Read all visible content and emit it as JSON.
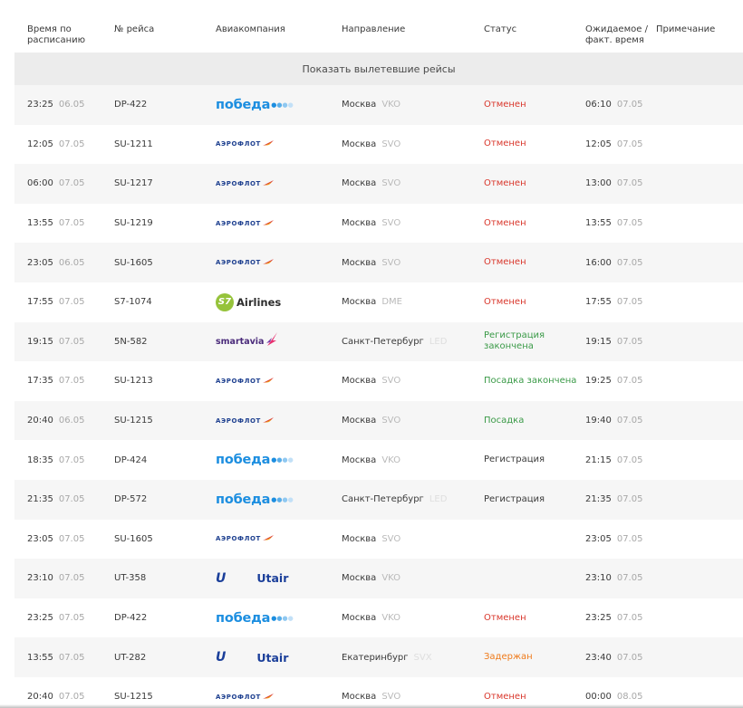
{
  "header": {
    "scheduled_time": "Время по расписанию",
    "flight_number": "№ рейса",
    "airline": "Авиакомпания",
    "destination": "Направление",
    "status": "Статус",
    "expected_time": "Ожидаемое / факт. время",
    "note": "Примечание"
  },
  "show_departed_label": "Показать вылетевшие рейсы",
  "colors": {
    "cancelled": "#d9372c",
    "boarding": "#3a9a47",
    "delayed": "#ef7a1a",
    "pobeda": "#1c8ee0",
    "aeroflot": "#1d3f8f",
    "s7": "#96c33b",
    "smartavia": "#4a2a7a",
    "utair": "#1b3f9a"
  },
  "flights": [
    {
      "scheduled_time": "23:25",
      "scheduled_date": "06.05",
      "flight": "DP-422",
      "airline": "pobeda",
      "city": "Москва",
      "airport": "VKO",
      "status": "Отменен",
      "status_type": "cancelled",
      "expected_time": "06:10",
      "expected_date": "07.05"
    },
    {
      "scheduled_time": "12:05",
      "scheduled_date": "07.05",
      "flight": "SU-1211",
      "airline": "aeroflot",
      "city": "Москва",
      "airport": "SVO",
      "status": "Отменен",
      "status_type": "cancelled",
      "expected_time": "12:05",
      "expected_date": "07.05"
    },
    {
      "scheduled_time": "06:00",
      "scheduled_date": "07.05",
      "flight": "SU-1217",
      "airline": "aeroflot",
      "city": "Москва",
      "airport": "SVO",
      "status": "Отменен",
      "status_type": "cancelled",
      "expected_time": "13:00",
      "expected_date": "07.05"
    },
    {
      "scheduled_time": "13:55",
      "scheduled_date": "07.05",
      "flight": "SU-1219",
      "airline": "aeroflot",
      "city": "Москва",
      "airport": "SVO",
      "status": "Отменен",
      "status_type": "cancelled",
      "expected_time": "13:55",
      "expected_date": "07.05"
    },
    {
      "scheduled_time": "23:05",
      "scheduled_date": "06.05",
      "flight": "SU-1605",
      "airline": "aeroflot",
      "city": "Москва",
      "airport": "SVO",
      "status": "Отменен",
      "status_type": "cancelled",
      "expected_time": "16:00",
      "expected_date": "07.05"
    },
    {
      "scheduled_time": "17:55",
      "scheduled_date": "07.05",
      "flight": "S7-1074",
      "airline": "s7",
      "city": "Москва",
      "airport": "DME",
      "status": "Отменен",
      "status_type": "cancelled",
      "expected_time": "17:55",
      "expected_date": "07.05"
    },
    {
      "scheduled_time": "19:15",
      "scheduled_date": "07.05",
      "flight": "5N-582",
      "airline": "smartavia",
      "city": "Санкт-Петербург",
      "airport": "LED",
      "status": "Регистрация закончена",
      "status_type": "green",
      "expected_time": "19:15",
      "expected_date": "07.05"
    },
    {
      "scheduled_time": "17:35",
      "scheduled_date": "07.05",
      "flight": "SU-1213",
      "airline": "aeroflot",
      "city": "Москва",
      "airport": "SVO",
      "status": "Посадка закончена",
      "status_type": "green",
      "expected_time": "19:25",
      "expected_date": "07.05"
    },
    {
      "scheduled_time": "20:40",
      "scheduled_date": "06.05",
      "flight": "SU-1215",
      "airline": "aeroflot",
      "city": "Москва",
      "airport": "SVO",
      "status": "Посадка",
      "status_type": "green",
      "expected_time": "19:40",
      "expected_date": "07.05"
    },
    {
      "scheduled_time": "18:35",
      "scheduled_date": "07.05",
      "flight": "DP-424",
      "airline": "pobeda",
      "city": "Москва",
      "airport": "VKO",
      "status": "Регистрация",
      "status_type": "neutral",
      "expected_time": "21:15",
      "expected_date": "07.05"
    },
    {
      "scheduled_time": "21:35",
      "scheduled_date": "07.05",
      "flight": "DP-572",
      "airline": "pobeda",
      "city": "Санкт-Петербург",
      "airport": "LED",
      "status": "Регистрация",
      "status_type": "neutral",
      "expected_time": "21:35",
      "expected_date": "07.05"
    },
    {
      "scheduled_time": "23:05",
      "scheduled_date": "07.05",
      "flight": "SU-1605",
      "airline": "aeroflot",
      "city": "Москва",
      "airport": "SVO",
      "status": "",
      "status_type": "neutral",
      "expected_time": "23:05",
      "expected_date": "07.05"
    },
    {
      "scheduled_time": "23:10",
      "scheduled_date": "07.05",
      "flight": "UT-358",
      "airline": "utair",
      "city": "Москва",
      "airport": "VKO",
      "status": "",
      "status_type": "neutral",
      "expected_time": "23:10",
      "expected_date": "07.05"
    },
    {
      "scheduled_time": "23:25",
      "scheduled_date": "07.05",
      "flight": "DP-422",
      "airline": "pobeda",
      "city": "Москва",
      "airport": "VKO",
      "status": "Отменен",
      "status_type": "cancelled",
      "expected_time": "23:25",
      "expected_date": "07.05"
    },
    {
      "scheduled_time": "13:55",
      "scheduled_date": "07.05",
      "flight": "UT-282",
      "airline": "utair",
      "city": "Екатеринбург",
      "airport": "SVX",
      "status": "Задержан",
      "status_type": "delayed",
      "expected_time": "23:40",
      "expected_date": "07.05"
    },
    {
      "scheduled_time": "20:40",
      "scheduled_date": "07.05",
      "flight": "SU-1215",
      "airline": "aeroflot",
      "city": "Москва",
      "airport": "SVO",
      "status": "Отменен",
      "status_type": "cancelled",
      "expected_time": "00:00",
      "expected_date": "08.05"
    }
  ]
}
